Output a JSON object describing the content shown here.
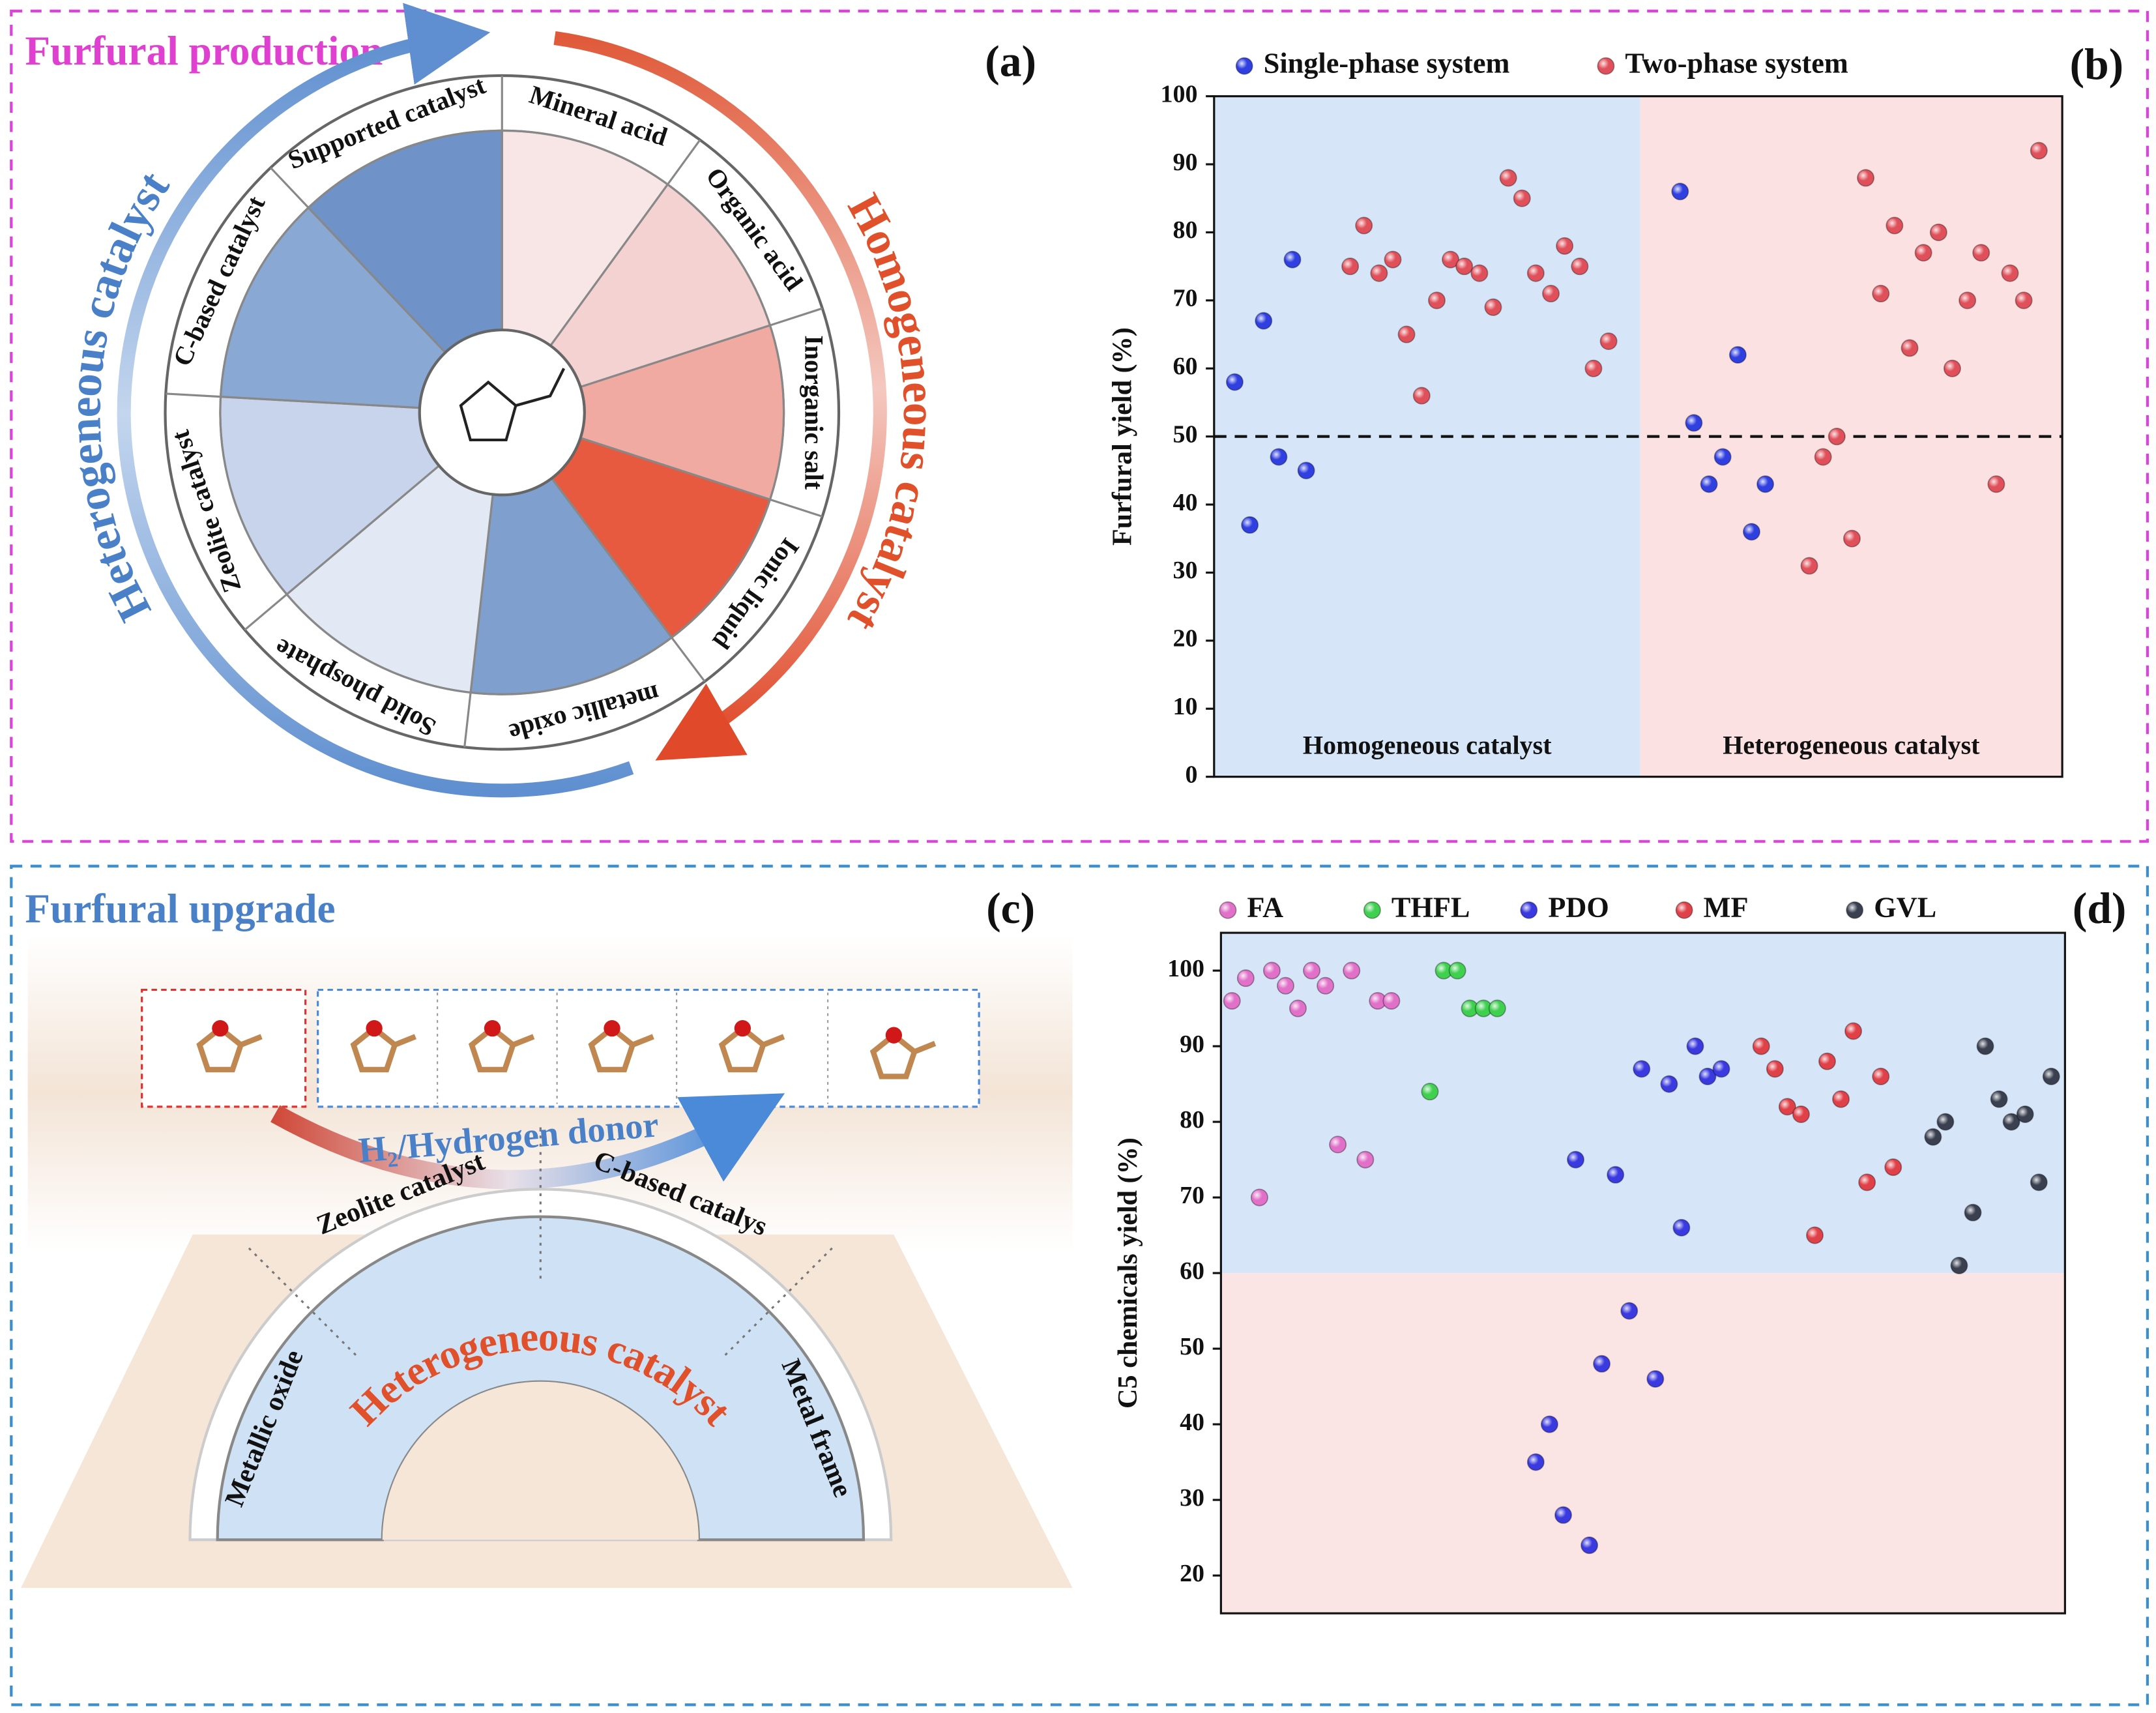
{
  "panel_a": {
    "title": "Furfural production",
    "label": "(a)",
    "left_arc": "Heterogeneous catalyst",
    "right_arc": "Homogeneous catalyst",
    "segments": [
      "Mineral acid",
      "Organic acid",
      "Inorganic salt",
      "Ionic liquid",
      "metallic oxide",
      "Solid phosphate",
      "Zeolite catalyst",
      "C-based catalyst",
      "Supported catalyst"
    ]
  },
  "panel_c": {
    "title": "Furfural upgrade",
    "label": "(c)",
    "arrow": "H₂/Hydrogen donor",
    "arch": "Heterogeneous catalyst",
    "sections": [
      "Metallic oxide",
      "Zeolite catalyst",
      "C-based catalys",
      "Metal frame"
    ]
  },
  "chart_data": [
    {
      "type": "scatter",
      "label": "(b)",
      "y_label": "Furfural yield (%)",
      "xlim": [
        0,
        61.7
      ],
      "ylim": [
        0,
        100
      ],
      "yticks": [
        0,
        10,
        20,
        30,
        40,
        50,
        60,
        70,
        80,
        90,
        100
      ],
      "hline": 50,
      "regions": [
        {
          "label": "Homogeneous catalyst",
          "x": [
            0,
            31
          ],
          "color": "#d6e6f8"
        },
        {
          "label": "Heterogeneous catalyst",
          "x": [
            31,
            61.7
          ],
          "color": "#fbe1e1"
        }
      ],
      "series": [
        {
          "name": "Single-phase system",
          "color": "#2f3fe0",
          "x": [
            1.5,
            2.6,
            3.6,
            4.7,
            5.7,
            6.7,
            33.9,
            34.9,
            36,
            37,
            38.1,
            39.1,
            40.1
          ],
          "values": [
            58,
            37,
            67,
            47,
            76,
            45,
            86,
            52,
            43,
            47,
            62,
            36,
            43
          ]
        },
        {
          "name": "Two-phase system",
          "color": "#e0505a",
          "x": [
            9.9,
            10.9,
            12,
            13,
            14,
            15.1,
            16.2,
            17.2,
            18.2,
            19.3,
            20.3,
            21.4,
            22.4,
            23.4,
            24.5,
            25.5,
            26.6,
            27.6,
            28.7,
            43.3,
            44.3,
            45.3,
            46.4,
            47.4,
            48.5,
            49.5,
            50.6,
            51.6,
            52.7,
            53.7,
            54.8,
            55.8,
            56.9,
            57.9,
            58.9,
            60
          ],
          "values": [
            75,
            81,
            74,
            76,
            65,
            56,
            70,
            76,
            75,
            74,
            69,
            88,
            85,
            74,
            71,
            78,
            75,
            60,
            64,
            31,
            47,
            50,
            35,
            88,
            71,
            81,
            63,
            77,
            80,
            60,
            70,
            77,
            43,
            74,
            70,
            92
          ]
        }
      ]
    },
    {
      "type": "scatter",
      "label": "(d)",
      "y_label": "C5 chemicals yield (%)",
      "xlim": [
        0,
        61.4
      ],
      "ylim": [
        15,
        105
      ],
      "yticks": [
        20,
        30,
        40,
        50,
        60,
        70,
        80,
        90,
        100
      ],
      "regions": [
        {
          "y": [
            60,
            105
          ],
          "color": "#d6e6f8"
        },
        {
          "y": [
            15,
            60
          ],
          "color": "#fbe4e4"
        }
      ],
      "series": [
        {
          "name": "FA",
          "color": "#e070c8",
          "x": [
            0.8,
            1.8,
            2.8,
            3.7,
            4.7,
            5.6,
            6.6,
            7.6,
            8.5,
            9.5,
            10.5,
            11.4,
            12.4
          ],
          "values": [
            96,
            99,
            70,
            100,
            98,
            95,
            100,
            98,
            77,
            100,
            75,
            96,
            96
          ]
        },
        {
          "name": "THFL",
          "color": "#40d050",
          "x": [
            15.2,
            16.2,
            17.2,
            18.1,
            19.1,
            20.1
          ],
          "values": [
            84,
            100,
            100,
            95,
            95,
            95
          ]
        },
        {
          "name": "PDO",
          "color": "#3a3ae0",
          "x": [
            22.9,
            23.9,
            24.9,
            25.8,
            26.8,
            27.7,
            28.7,
            29.7,
            30.6,
            31.6,
            32.6,
            33.5,
            34.5,
            35.4,
            36.4
          ],
          "values": [
            35,
            40,
            28,
            75,
            24,
            48,
            73,
            55,
            87,
            46,
            85,
            66,
            90,
            86,
            87
          ]
        },
        {
          "name": "MF",
          "color": "#e04048",
          "x": [
            39.3,
            40.3,
            41.2,
            42.2,
            43.2,
            44.1,
            45.1,
            46,
            47,
            48,
            48.9
          ],
          "values": [
            90,
            87,
            82,
            81,
            65,
            88,
            83,
            92,
            72,
            86,
            74
          ]
        },
        {
          "name": "GVL",
          "color": "#3a4050",
          "x": [
            51.8,
            52.7,
            53.7,
            54.7,
            55.6,
            56.6,
            57.5,
            58.5,
            59.5,
            60.4
          ],
          "values": [
            78,
            80,
            61,
            68,
            90,
            83,
            80,
            81,
            72,
            86
          ]
        }
      ]
    }
  ]
}
